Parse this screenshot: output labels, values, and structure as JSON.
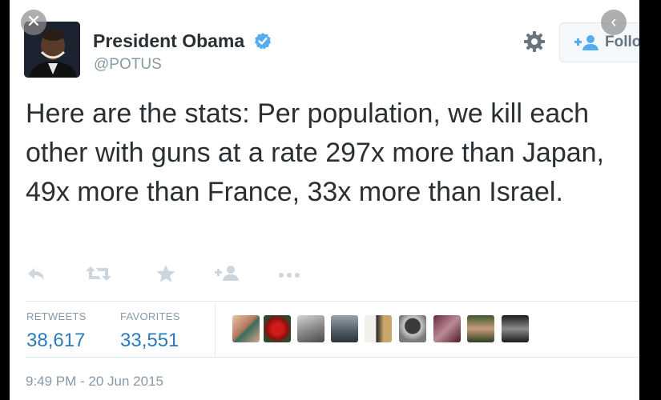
{
  "tweet": {
    "author_name": "President Obama",
    "handle": "@POTUS",
    "text": "Here are the stats: Per population, we kill each other with guns at a rate 297x more than Japan, 49x more than France, 33x more than Israel.",
    "timestamp": "9:49 PM - 20 Jun 2015"
  },
  "follow_button": {
    "label": "Follo"
  },
  "stats": {
    "retweets_label": "RETWEETS",
    "retweets_count": "38,617",
    "favorites_label": "FAVORITES",
    "favorites_count": "33,551"
  },
  "icons": {
    "verified": "verified-badge-icon",
    "settings": "gear-icon",
    "reply": "reply-icon",
    "retweet": "retweet-icon",
    "favorite": "star-icon",
    "follow": "add-user-icon",
    "more": "more-icon",
    "close": "close-icon",
    "back": "chevron-left-icon"
  },
  "colors": {
    "link_blue": "#2b7bb9",
    "verified_blue": "#55acee",
    "text": "#292f33",
    "muted": "#8899a6"
  },
  "favoriter_avatars_count": 9
}
